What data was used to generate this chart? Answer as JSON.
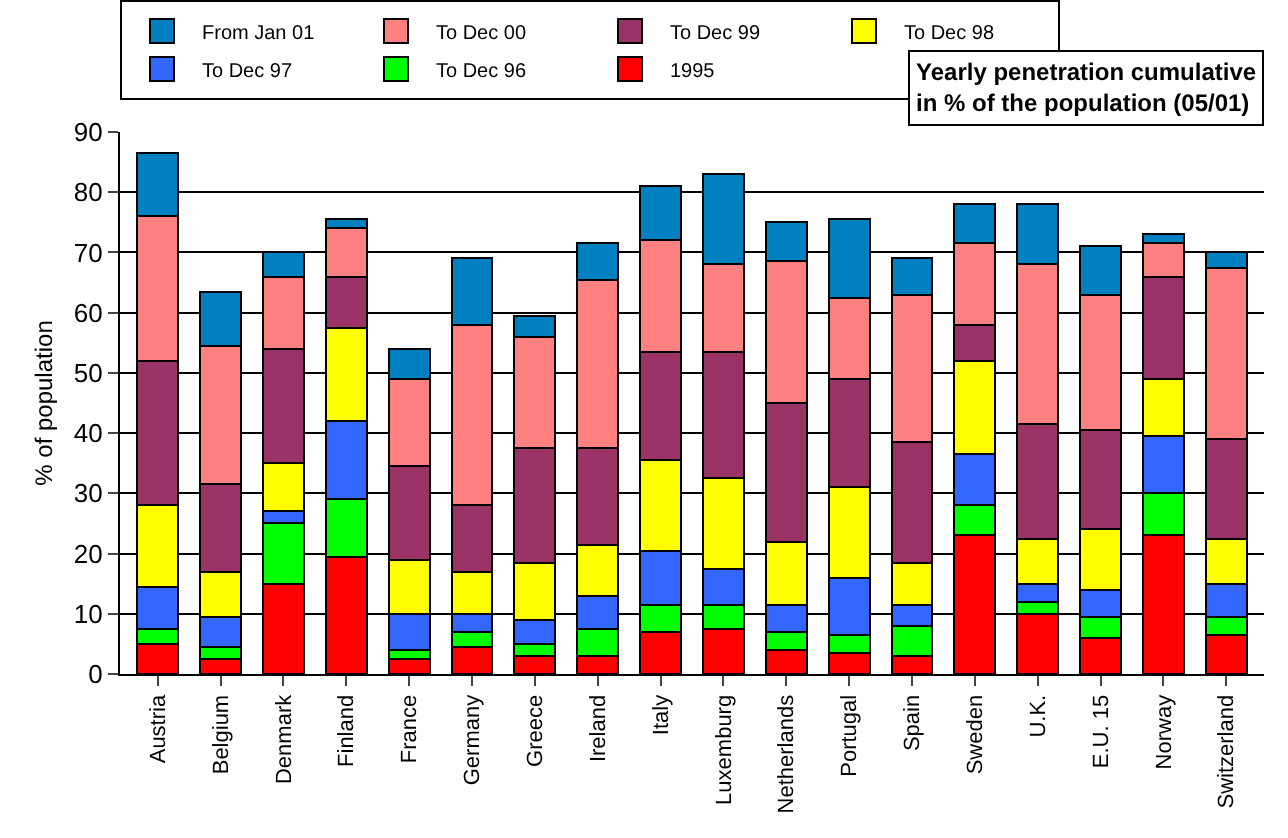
{
  "chart_data": {
    "type": "bar",
    "title": "Yearly penetration cumulative\nin % of the population (05/01)",
    "ylabel": "% of population",
    "stacked": true,
    "grid": "y",
    "legend": "top",
    "ylim": [
      0,
      90
    ],
    "yticks": [
      0,
      10,
      20,
      30,
      40,
      50,
      60,
      70,
      80,
      90
    ],
    "categories": [
      "Austria",
      "Belgium",
      "Denmark",
      "Finland",
      "France",
      "Germany",
      "Greece",
      "Ireland",
      "Italy",
      "Luxemburg",
      "Netherlands",
      "Portugal",
      "Spain",
      "Sweden",
      "U.K.",
      "E.U. 15",
      "Norway",
      "Switzerland"
    ],
    "series": [
      {
        "name": "1995",
        "color": "#ff0000",
        "values": [
          5,
          2.5,
          15,
          19.5,
          2.5,
          4.5,
          3,
          3,
          7,
          7.5,
          4,
          3.5,
          3,
          23,
          10,
          6,
          23,
          6.5
        ]
      },
      {
        "name": "To Dec 96",
        "color": "#00ff00",
        "values": [
          2.5,
          2,
          10,
          9.5,
          1.5,
          2.5,
          2,
          4.5,
          4.5,
          4,
          3,
          3,
          5,
          5,
          2,
          3.5,
          7,
          3
        ]
      },
      {
        "name": "To Dec 97",
        "color": "#3366ff",
        "values": [
          7,
          5,
          2,
          13,
          6,
          3,
          4,
          5.5,
          9,
          6,
          4.5,
          9.5,
          3.5,
          8.5,
          3,
          4.5,
          9.5,
          5.5
        ]
      },
      {
        "name": "To Dec 98",
        "color": "#ffff00",
        "values": [
          13.5,
          7.5,
          8,
          15.5,
          9,
          7,
          9.5,
          8.5,
          15,
          15,
          10.5,
          15,
          7,
          15.5,
          7.5,
          10,
          9.5,
          7.5
        ]
      },
      {
        "name": "To Dec 99",
        "color": "#993366",
        "values": [
          24,
          14.5,
          19,
          8.5,
          15.5,
          11,
          19,
          16,
          18,
          21,
          23,
          18,
          20,
          6,
          19,
          16.5,
          17,
          16.5
        ]
      },
      {
        "name": "To Dec 00",
        "color": "#ff8080",
        "values": [
          24,
          23,
          12,
          8,
          14.5,
          30,
          18.5,
          28,
          18.5,
          14.5,
          23.5,
          13.5,
          24.5,
          13.5,
          26.5,
          22.5,
          5.5,
          28.5
        ]
      },
      {
        "name": "From Jan 01",
        "color": "#0080c0",
        "values": [
          10.5,
          9,
          4,
          1.5,
          5,
          11,
          3.5,
          6,
          9,
          15,
          6.5,
          13,
          6,
          6.5,
          10,
          8,
          1.5,
          2.5
        ]
      }
    ]
  }
}
